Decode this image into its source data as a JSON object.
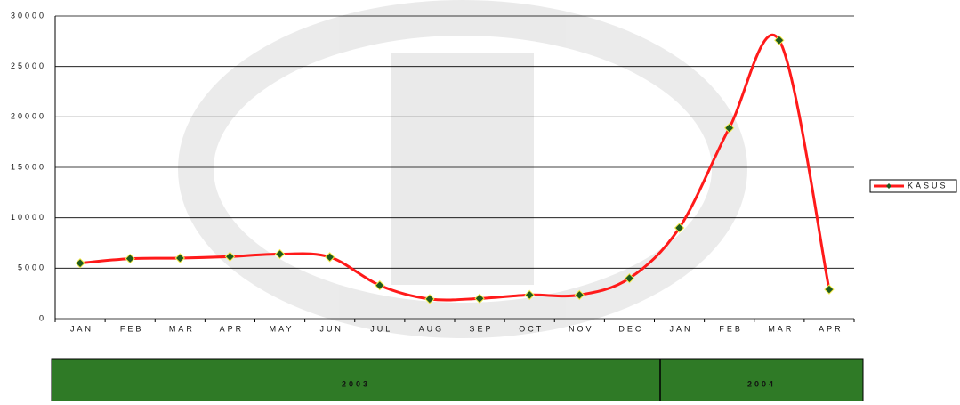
{
  "chart_data": {
    "type": "line",
    "categories": [
      "JAN",
      "FEB",
      "MAR",
      "APR",
      "MAY",
      "JUN",
      "JUL",
      "AUG",
      "SEP",
      "OCT",
      "NOV",
      "DEC",
      "JAN",
      "FEB",
      "MAR",
      "APR"
    ],
    "series": [
      {
        "name": "KASUS",
        "color": "#ff1a1a",
        "marker_color": "#1e5a1e",
        "values": [
          5500,
          5950,
          6000,
          6150,
          6400,
          6100,
          3300,
          1950,
          2000,
          2350,
          2350,
          4000,
          9000,
          18900,
          27600,
          2900
        ]
      }
    ],
    "ylim": [
      0,
      30000
    ],
    "yticks": [
      0,
      5000,
      10000,
      15000,
      20000,
      25000,
      30000
    ],
    "grid": true,
    "legend": "right",
    "groups": [
      {
        "label": "2003",
        "count": 12
      },
      {
        "label": "2004",
        "count": 4
      }
    ],
    "group_color": "#2f7a26",
    "group_text_color": "#ee4422"
  }
}
